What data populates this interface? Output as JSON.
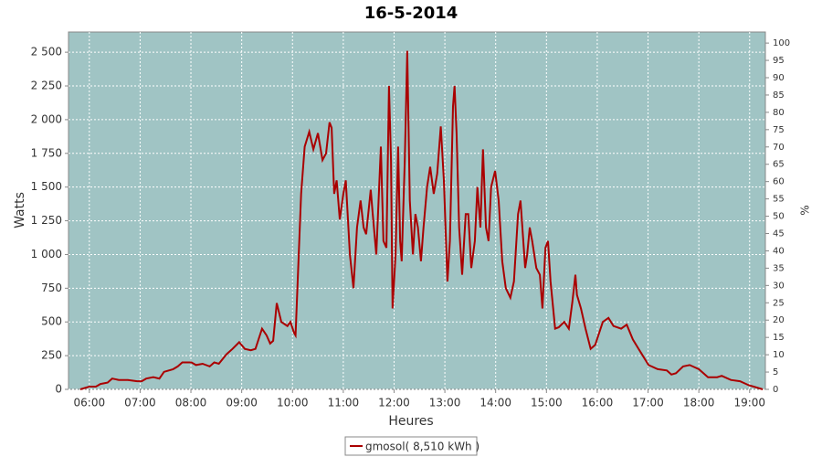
{
  "chart_data": {
    "type": "line",
    "title": "16-5-2014",
    "xlabel": "Heures",
    "ylabel": "Watts",
    "y2label": "%",
    "x": [
      5.82,
      6.0,
      6.13,
      6.22,
      6.36,
      6.45,
      6.58,
      6.76,
      6.94,
      7.03,
      7.12,
      7.26,
      7.38,
      7.47,
      7.65,
      7.74,
      7.83,
      8.01,
      8.1,
      8.23,
      8.37,
      8.46,
      8.55,
      8.7,
      8.82,
      8.95,
      9.06,
      9.18,
      9.27,
      9.4,
      9.49,
      9.56,
      9.62,
      9.69,
      9.78,
      9.9,
      9.96,
      10.03,
      10.06,
      10.17,
      10.24,
      10.33,
      10.41,
      10.5,
      10.59,
      10.66,
      10.73,
      10.77,
      10.82,
      10.87,
      10.93,
      11.0,
      11.05,
      11.13,
      11.2,
      11.27,
      11.34,
      11.4,
      11.45,
      11.54,
      11.58,
      11.65,
      11.74,
      11.79,
      11.85,
      11.9,
      11.94,
      11.97,
      12.03,
      12.08,
      12.12,
      12.15,
      12.21,
      12.26,
      12.31,
      12.37,
      12.42,
      12.47,
      12.53,
      12.58,
      12.65,
      12.71,
      12.78,
      12.85,
      12.92,
      12.98,
      13.05,
      13.1,
      13.16,
      13.19,
      13.23,
      13.28,
      13.34,
      13.41,
      13.46,
      13.52,
      13.59,
      13.64,
      13.7,
      13.75,
      13.81,
      13.86,
      13.91,
      13.99,
      14.06,
      14.13,
      14.2,
      14.29,
      14.36,
      14.44,
      14.49,
      14.58,
      14.62,
      14.67,
      14.72,
      14.8,
      14.87,
      14.92,
      14.98,
      15.03,
      15.08,
      15.17,
      15.24,
      15.35,
      15.44,
      15.51,
      15.57,
      15.6,
      15.68,
      15.77,
      15.87,
      15.96,
      16.11,
      16.22,
      16.32,
      16.47,
      16.58,
      16.7,
      16.83,
      17.01,
      17.19,
      17.37,
      17.46,
      17.55,
      17.69,
      17.82,
      18.0,
      18.18,
      18.36,
      18.45,
      18.63,
      18.81,
      18.99,
      19.08,
      19.17,
      19.26
    ],
    "series": [
      {
        "name": "gmosol( 8,510 kWh )",
        "color": "#aa0000",
        "values": [
          0,
          20,
          20,
          40,
          50,
          80,
          70,
          70,
          60,
          60,
          80,
          90,
          80,
          130,
          150,
          170,
          200,
          200,
          180,
          190,
          170,
          200,
          190,
          260,
          300,
          350,
          300,
          290,
          300,
          450,
          400,
          340,
          360,
          640,
          500,
          470,
          500,
          420,
          400,
          1450,
          1800,
          1910,
          1780,
          1900,
          1700,
          1750,
          1980,
          1940,
          1450,
          1550,
          1260,
          1450,
          1550,
          1000,
          750,
          1200,
          1400,
          1200,
          1150,
          1480,
          1300,
          1000,
          1800,
          1100,
          1050,
          2250,
          1700,
          600,
          1000,
          1800,
          1100,
          950,
          1700,
          2510,
          1400,
          1000,
          1300,
          1200,
          950,
          1200,
          1500,
          1650,
          1450,
          1600,
          1950,
          1550,
          800,
          1100,
          2100,
          2250,
          1900,
          1200,
          850,
          1300,
          1300,
          900,
          1100,
          1500,
          1200,
          1780,
          1200,
          1100,
          1500,
          1620,
          1400,
          950,
          750,
          680,
          800,
          1300,
          1400,
          900,
          1000,
          1200,
          1100,
          900,
          850,
          600,
          1050,
          1100,
          800,
          450,
          460,
          500,
          450,
          650,
          850,
          700,
          600,
          450,
          300,
          330,
          500,
          530,
          470,
          450,
          480,
          370,
          290,
          180,
          150,
          140,
          110,
          120,
          170,
          180,
          150,
          90,
          90,
          100,
          70,
          60,
          30,
          20,
          10,
          0
        ]
      }
    ],
    "xlim": [
      5.59,
      19.31
    ],
    "xticks": [
      {
        "value": 6,
        "label": "06:00"
      },
      {
        "value": 7,
        "label": "07:00"
      },
      {
        "value": 8,
        "label": "08:00"
      },
      {
        "value": 9,
        "label": "09:00"
      },
      {
        "value": 10,
        "label": "10:00"
      },
      {
        "value": 11,
        "label": "11:00"
      },
      {
        "value": 12,
        "label": "12:00"
      },
      {
        "value": 13,
        "label": "13:00"
      },
      {
        "value": 14,
        "label": "14:00"
      },
      {
        "value": 15,
        "label": "15:00"
      },
      {
        "value": 16,
        "label": "16:00"
      },
      {
        "value": 17,
        "label": "17:00"
      },
      {
        "value": 18,
        "label": "18:00"
      },
      {
        "value": 19,
        "label": "19:00"
      }
    ],
    "ylim": [
      0,
      2650
    ],
    "yticks": [
      0,
      250,
      500,
      750,
      {
        "value": 1000,
        "label": "1 000"
      },
      {
        "value": 1250,
        "label": "1 250"
      },
      {
        "value": 1500,
        "label": "1 500"
      },
      {
        "value": 1750,
        "label": "1 750"
      },
      {
        "value": 2000,
        "label": "2 000"
      },
      {
        "value": 2250,
        "label": "2 250"
      },
      {
        "value": 2500,
        "label": "2 500"
      }
    ],
    "y2lim": [
      0,
      103.2
    ],
    "y2ticks": [
      0,
      5,
      10,
      15,
      20,
      25,
      30,
      35,
      40,
      45,
      50,
      55,
      60,
      65,
      70,
      75,
      80,
      85,
      90,
      95,
      100
    ],
    "grid": true,
    "legend": "bottom",
    "background": "#a0c4c4"
  }
}
